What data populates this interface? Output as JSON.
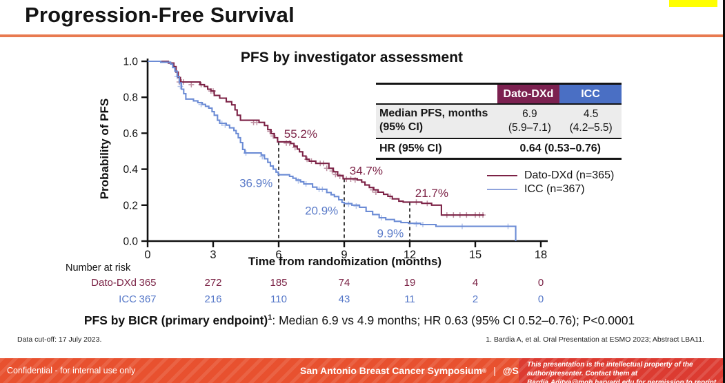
{
  "slide": {
    "title": "Progression-Free Survival",
    "accent_color": "#E87A50",
    "highlight_color": "#FFFF00"
  },
  "chart_data": {
    "type": "line",
    "subtype": "kaplan-meier-step",
    "title": "PFS by investigator assessment",
    "xlabel": "Time from randomization (months)",
    "ylabel": "Probability of PFS",
    "xlim": [
      0,
      18
    ],
    "ylim": [
      0.0,
      1.0
    ],
    "x_ticks": [
      "0",
      "3",
      "6",
      "9",
      "12",
      "15",
      "18"
    ],
    "y_ticks": [
      "0.0",
      "0.2",
      "0.4",
      "0.6",
      "0.8",
      "1.0"
    ],
    "grid": false,
    "legend_position": "right",
    "series": [
      {
        "name": "Dato-DXd (n=365)",
        "color": "#7C2246",
        "step_points": [
          [
            0,
            1.0
          ],
          [
            0.95,
            0.99
          ],
          [
            1.2,
            0.97
          ],
          [
            1.3,
            0.94
          ],
          [
            1.4,
            0.91
          ],
          [
            1.5,
            0.885
          ],
          [
            2.4,
            0.87
          ],
          [
            2.6,
            0.86
          ],
          [
            2.75,
            0.845
          ],
          [
            2.9,
            0.835
          ],
          [
            3.05,
            0.81
          ],
          [
            3.3,
            0.795
          ],
          [
            3.6,
            0.775
          ],
          [
            3.85,
            0.758
          ],
          [
            4.0,
            0.73
          ],
          [
            4.1,
            0.7
          ],
          [
            4.25,
            0.672
          ],
          [
            5.1,
            0.66
          ],
          [
            5.35,
            0.643
          ],
          [
            5.5,
            0.62
          ],
          [
            5.65,
            0.598
          ],
          [
            5.8,
            0.575
          ],
          [
            5.95,
            0.552
          ],
          [
            6.55,
            0.543
          ],
          [
            6.7,
            0.528
          ],
          [
            6.85,
            0.512
          ],
          [
            6.95,
            0.497
          ],
          [
            7.1,
            0.473
          ],
          [
            7.25,
            0.455
          ],
          [
            7.4,
            0.445
          ],
          [
            7.7,
            0.432
          ],
          [
            8.3,
            0.405
          ],
          [
            8.5,
            0.386
          ],
          [
            8.7,
            0.365
          ],
          [
            8.95,
            0.347
          ],
          [
            9.6,
            0.34
          ],
          [
            9.8,
            0.328
          ],
          [
            9.95,
            0.312
          ],
          [
            10.15,
            0.298
          ],
          [
            10.35,
            0.285
          ],
          [
            10.55,
            0.272
          ],
          [
            10.8,
            0.26
          ],
          [
            11.0,
            0.249
          ],
          [
            11.2,
            0.235
          ],
          [
            11.5,
            0.222
          ],
          [
            11.7,
            0.217
          ],
          [
            12.55,
            0.21
          ],
          [
            13.0,
            0.2
          ],
          [
            13.45,
            0.145
          ],
          [
            15.4,
            0.145
          ]
        ],
        "censor_marks": [
          [
            1.45,
            0.885
          ],
          [
            1.55,
            0.885
          ],
          [
            1.65,
            0.885
          ],
          [
            2.0,
            0.87
          ],
          [
            2.45,
            0.87
          ],
          [
            2.9,
            0.835
          ],
          [
            3.0,
            0.835
          ],
          [
            4.85,
            0.66
          ],
          [
            5.0,
            0.66
          ],
          [
            5.6,
            0.61
          ],
          [
            5.75,
            0.585
          ],
          [
            6.35,
            0.545
          ],
          [
            6.5,
            0.545
          ],
          [
            6.75,
            0.52
          ],
          [
            7.3,
            0.455
          ],
          [
            7.5,
            0.445
          ],
          [
            7.9,
            0.432
          ],
          [
            8.05,
            0.432
          ],
          [
            8.2,
            0.405
          ],
          [
            8.45,
            0.39
          ],
          [
            8.6,
            0.37
          ],
          [
            8.8,
            0.36
          ],
          [
            9.1,
            0.345
          ],
          [
            9.3,
            0.345
          ],
          [
            9.5,
            0.34
          ],
          [
            10.3,
            0.285
          ],
          [
            10.45,
            0.272
          ],
          [
            11.1,
            0.249
          ],
          [
            12.3,
            0.217
          ],
          [
            12.8,
            0.21
          ],
          [
            13.7,
            0.145
          ],
          [
            14.0,
            0.145
          ],
          [
            14.3,
            0.145
          ],
          [
            14.6,
            0.145
          ],
          [
            15.0,
            0.145
          ],
          [
            15.2,
            0.145
          ],
          [
            15.35,
            0.145
          ]
        ]
      },
      {
        "name": "ICC (n=367)",
        "color": "#6C8CD5",
        "step_points": [
          [
            0,
            1.0
          ],
          [
            0.6,
            0.995
          ],
          [
            1.05,
            0.985
          ],
          [
            1.15,
            0.965
          ],
          [
            1.25,
            0.945
          ],
          [
            1.35,
            0.915
          ],
          [
            1.45,
            0.88
          ],
          [
            1.55,
            0.845
          ],
          [
            1.65,
            0.82
          ],
          [
            1.75,
            0.79
          ],
          [
            2.1,
            0.78
          ],
          [
            2.3,
            0.77
          ],
          [
            2.5,
            0.76
          ],
          [
            2.65,
            0.75
          ],
          [
            2.8,
            0.74
          ],
          [
            2.95,
            0.72
          ],
          [
            3.05,
            0.7
          ],
          [
            3.2,
            0.672
          ],
          [
            3.3,
            0.655
          ],
          [
            3.6,
            0.645
          ],
          [
            3.75,
            0.63
          ],
          [
            3.95,
            0.615
          ],
          [
            4.05,
            0.598
          ],
          [
            4.15,
            0.575
          ],
          [
            4.25,
            0.548
          ],
          [
            4.35,
            0.51
          ],
          [
            4.45,
            0.49
          ],
          [
            5.2,
            0.478
          ],
          [
            5.35,
            0.458
          ],
          [
            5.5,
            0.438
          ],
          [
            5.62,
            0.418
          ],
          [
            5.75,
            0.4
          ],
          [
            5.88,
            0.384
          ],
          [
            5.98,
            0.369
          ],
          [
            6.5,
            0.36
          ],
          [
            6.65,
            0.35
          ],
          [
            6.8,
            0.34
          ],
          [
            7.0,
            0.33
          ],
          [
            7.15,
            0.318
          ],
          [
            7.55,
            0.3
          ],
          [
            7.75,
            0.288
          ],
          [
            8.2,
            0.27
          ],
          [
            8.4,
            0.258
          ],
          [
            8.55,
            0.248
          ],
          [
            8.75,
            0.23
          ],
          [
            8.9,
            0.215
          ],
          [
            9.0,
            0.209
          ],
          [
            9.35,
            0.2
          ],
          [
            9.7,
            0.188
          ],
          [
            10.0,
            0.165
          ],
          [
            10.3,
            0.148
          ],
          [
            10.6,
            0.13
          ],
          [
            10.9,
            0.12
          ],
          [
            11.3,
            0.11
          ],
          [
            11.6,
            0.103
          ],
          [
            11.95,
            0.099
          ],
          [
            12.5,
            0.092
          ],
          [
            13.2,
            0.082
          ],
          [
            16.85,
            0.082
          ],
          [
            16.85,
            0.0
          ]
        ],
        "censor_marks": [
          [
            1.35,
            0.915
          ],
          [
            1.5,
            0.86
          ],
          [
            2.45,
            0.76
          ],
          [
            3.4,
            0.655
          ],
          [
            3.55,
            0.645
          ],
          [
            4.5,
            0.49
          ],
          [
            5.25,
            0.47
          ],
          [
            6.9,
            0.335
          ],
          [
            7.25,
            0.318
          ],
          [
            7.85,
            0.288
          ],
          [
            8.0,
            0.288
          ],
          [
            9.2,
            0.205
          ],
          [
            9.55,
            0.195
          ],
          [
            10.7,
            0.13
          ],
          [
            12.3,
            0.095
          ],
          [
            12.6,
            0.092
          ],
          [
            14.4,
            0.082
          ],
          [
            16.5,
            0.082
          ]
        ]
      }
    ],
    "landmark_lines": [
      {
        "month": 6,
        "top_prob": 0.552
      },
      {
        "month": 9,
        "top_prob": 0.347
      },
      {
        "month": 12,
        "top_prob": 0.217
      }
    ],
    "annotations": [
      {
        "text": "55.2%",
        "color": "#7C2246",
        "anchor": "start",
        "month": 6.15,
        "prob": 0.575
      },
      {
        "text": "34.7%",
        "color": "#7C2246",
        "anchor": "start",
        "month": 9.15,
        "prob": 0.37
      },
      {
        "text": "21.7%",
        "color": "#7C2246",
        "anchor": "start",
        "month": 12.15,
        "prob": 0.245
      },
      {
        "text": "36.9%",
        "color": "#5C7CC9",
        "anchor": "end",
        "month": 5.82,
        "prob": 0.3
      },
      {
        "text": "20.9%",
        "color": "#5C7CC9",
        "anchor": "end",
        "month": 8.82,
        "prob": 0.147
      },
      {
        "text": "9.9%",
        "color": "#5C7CC9",
        "anchor": "end",
        "month": 11.82,
        "prob": 0.022
      }
    ]
  },
  "results_table": {
    "col_headers": [
      "Dato-DXd",
      "ICC"
    ],
    "header_colors": [
      "#7C2150",
      "#4A6FC4"
    ],
    "median_row": {
      "label_line1": "Median PFS, months",
      "label_line2": "(95% CI)",
      "dato_line1": "6.9",
      "dato_line2": "(5.9–7.1)",
      "icc_line1": "4.5",
      "icc_line2": "(4.2–5.5)"
    },
    "hr_row": {
      "label": "HR (95% CI)",
      "value": "0.64 (0.53–0.76)"
    }
  },
  "legend": {
    "items": [
      {
        "label": "Dato-DXd (n=365)",
        "color": "#7C2246"
      },
      {
        "label": "ICC (n=367)",
        "color": "#8FA3DC"
      }
    ]
  },
  "risk_table": {
    "heading": "Number at risk",
    "time_points": [
      0,
      3,
      6,
      9,
      12,
      15,
      18
    ],
    "rows": [
      {
        "label": "Dato-DXd",
        "color": "#7B2346",
        "counts": [
          "365",
          "272",
          "185",
          "74",
          "19",
          "4",
          "0"
        ]
      },
      {
        "label": "ICC",
        "color": "#5577C8",
        "counts": [
          "367",
          "216",
          "110",
          "43",
          "11",
          "2",
          "0"
        ]
      }
    ]
  },
  "summary": {
    "bold": "PFS by BICR (primary endpoint)",
    "ref_marker": "1",
    "rest": ": Median 6.9 vs 4.9 months; HR 0.63 (95% CI 0.52–0.76); P<0.0001"
  },
  "footnotes": {
    "left": "Data cut-off: 17 July 2023.",
    "right": "1. Bardia A, et al. Oral Presentation at ESMO 2023; Abstract LBA11."
  },
  "footer": {
    "confidential": "Confidential - for internal use only",
    "symposium": "San Antonio Breast Cancer Symposium",
    "reg_mark": "®",
    "separator": "|",
    "handle": "@SABCSSanAntonio",
    "rights": "This presentation is the intellectual property of the author/presenter. Contact them at Bardia.Aditya@mgh.harvard.edu for permission to reprint and/or distribute"
  }
}
